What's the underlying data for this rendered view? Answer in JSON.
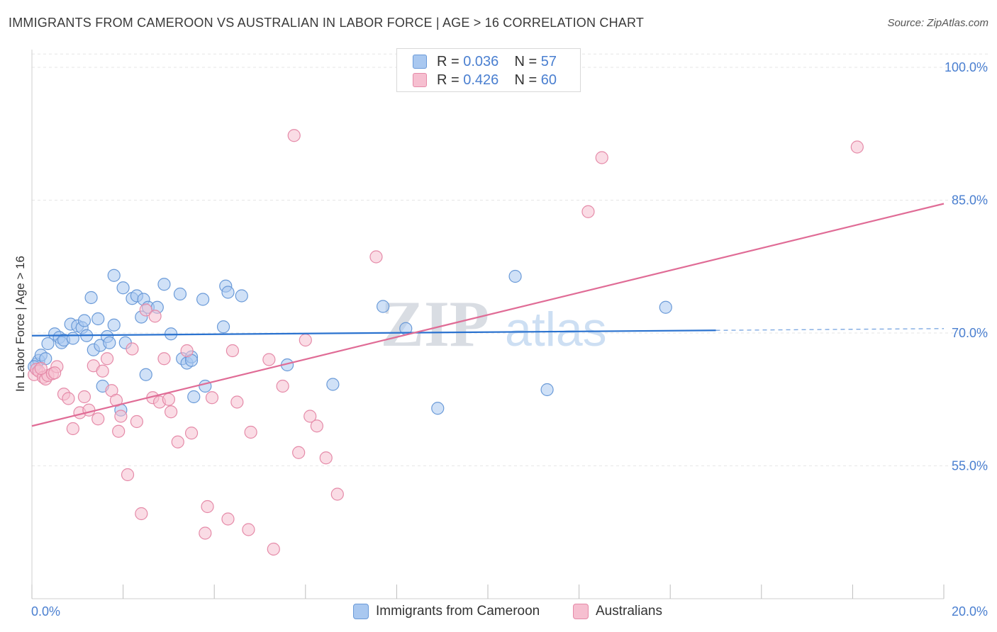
{
  "header": {
    "title": "IMMIGRANTS FROM CAMEROON VS AUSTRALIAN IN LABOR FORCE | AGE > 16 CORRELATION CHART",
    "source": "Source: ZipAtlas.com"
  },
  "legend": {
    "series1": {
      "r_label": "R =",
      "r_value": "0.036",
      "n_label": "N =",
      "n_value": "57"
    },
    "series2": {
      "r_label": "R =",
      "r_value": "0.426",
      "n_label": "N =",
      "n_value": "60"
    }
  },
  "bottom_legend": {
    "series1_label": "Immigrants from Cameroon",
    "series2_label": "Australians"
  },
  "watermark": {
    "part1": "ZIP",
    "part2": "atlas"
  },
  "colors": {
    "blue_fill": "#a9c8f0",
    "blue_stroke": "#6a9ad8",
    "blue_line": "#2a72cf",
    "pink_fill": "#f6bfd0",
    "pink_stroke": "#e58aa8",
    "pink_line": "#e06c96",
    "axis_text": "#4a7fd0",
    "grid": "#e6e6e6"
  },
  "chart_data": {
    "type": "scatter",
    "title": "IMMIGRANTS FROM CAMEROON VS AUSTRALIAN IN LABOR FORCE | AGE > 16 CORRELATION CHART",
    "xlabel": "",
    "ylabel": "In Labor Force | Age > 16",
    "xlim": [
      0,
      20
    ],
    "ylim": [
      40,
      102
    ],
    "x_tick_labels": [
      "0.0%",
      "20.0%"
    ],
    "y_ticks": [
      55,
      70,
      85,
      100
    ],
    "y_tick_labels": [
      "55.0%",
      "70.0%",
      "85.0%",
      "100.0%"
    ],
    "grid": true,
    "legend_position": "top-center",
    "series": [
      {
        "name": "Immigrants from Cameroon",
        "r": 0.036,
        "n": 57,
        "trend": {
          "x0": 0,
          "y0": 69.7,
          "x1": 15,
          "y1": 70.3,
          "dashed_to_x": 20,
          "dashed_to_y": 70.5
        },
        "points": [
          [
            0.1,
            66.5
          ],
          [
            0.15,
            66.9
          ],
          [
            0.2,
            67.5
          ],
          [
            0.3,
            67.1
          ],
          [
            0.35,
            68.8
          ],
          [
            0.5,
            69.9
          ],
          [
            0.6,
            69.5
          ],
          [
            0.65,
            68.9
          ],
          [
            0.7,
            69.2
          ],
          [
            0.9,
            69.4
          ],
          [
            0.85,
            71.0
          ],
          [
            1.0,
            70.8
          ],
          [
            1.1,
            70.6
          ],
          [
            1.15,
            71.4
          ],
          [
            1.2,
            69.7
          ],
          [
            1.3,
            74.0
          ],
          [
            1.35,
            68.1
          ],
          [
            1.45,
            71.6
          ],
          [
            1.5,
            68.6
          ],
          [
            1.55,
            64.0
          ],
          [
            1.65,
            69.6
          ],
          [
            1.7,
            68.9
          ],
          [
            1.8,
            70.9
          ],
          [
            1.8,
            76.5
          ],
          [
            1.95,
            61.3
          ],
          [
            2.0,
            75.1
          ],
          [
            2.05,
            68.9
          ],
          [
            2.2,
            73.9
          ],
          [
            2.3,
            74.2
          ],
          [
            2.4,
            71.8
          ],
          [
            2.45,
            73.8
          ],
          [
            2.5,
            65.3
          ],
          [
            2.55,
            72.9
          ],
          [
            2.75,
            72.9
          ],
          [
            2.9,
            75.5
          ],
          [
            3.05,
            69.9
          ],
          [
            3.25,
            74.4
          ],
          [
            3.3,
            67.1
          ],
          [
            3.4,
            66.6
          ],
          [
            3.5,
            67.3
          ],
          [
            3.5,
            66.9
          ],
          [
            3.55,
            62.8
          ],
          [
            3.75,
            73.8
          ],
          [
            3.8,
            64.0
          ],
          [
            4.2,
            70.7
          ],
          [
            4.25,
            75.3
          ],
          [
            4.3,
            74.6
          ],
          [
            4.6,
            74.2
          ],
          [
            5.6,
            66.4
          ],
          [
            6.6,
            64.2
          ],
          [
            7.7,
            73.0
          ],
          [
            8.2,
            70.5
          ],
          [
            8.9,
            61.5
          ],
          [
            10.6,
            76.4
          ],
          [
            11.3,
            63.6
          ],
          [
            13.9,
            72.9
          ],
          [
            0.05,
            66.2
          ]
        ]
      },
      {
        "name": "Australians",
        "r": 0.426,
        "n": 60,
        "trend": {
          "x0": 0,
          "y0": 59.5,
          "x1": 20,
          "y1": 84.6
        },
        "points": [
          [
            0.05,
            65.3
          ],
          [
            0.1,
            65.9
          ],
          [
            0.15,
            65.7
          ],
          [
            0.25,
            65.0
          ],
          [
            0.3,
            64.8
          ],
          [
            0.35,
            65.2
          ],
          [
            0.45,
            65.4
          ],
          [
            0.55,
            66.2
          ],
          [
            0.7,
            63.1
          ],
          [
            0.8,
            62.6
          ],
          [
            0.9,
            59.2
          ],
          [
            1.05,
            61.0
          ],
          [
            1.15,
            62.8
          ],
          [
            1.25,
            61.3
          ],
          [
            1.35,
            66.3
          ],
          [
            1.45,
            60.3
          ],
          [
            1.55,
            65.7
          ],
          [
            1.65,
            67.1
          ],
          [
            1.75,
            63.5
          ],
          [
            1.85,
            62.4
          ],
          [
            1.9,
            58.9
          ],
          [
            1.95,
            60.6
          ],
          [
            2.1,
            54.0
          ],
          [
            2.2,
            68.2
          ],
          [
            2.3,
            60.0
          ],
          [
            2.4,
            49.6
          ],
          [
            2.5,
            72.6
          ],
          [
            2.65,
            62.7
          ],
          [
            2.7,
            71.9
          ],
          [
            2.8,
            62.2
          ],
          [
            2.9,
            67.1
          ],
          [
            3.0,
            62.5
          ],
          [
            3.05,
            61.1
          ],
          [
            3.2,
            57.7
          ],
          [
            3.4,
            68.0
          ],
          [
            3.5,
            58.7
          ],
          [
            3.8,
            47.4
          ],
          [
            3.85,
            50.4
          ],
          [
            3.95,
            62.7
          ],
          [
            4.3,
            49.0
          ],
          [
            4.4,
            68.0
          ],
          [
            4.5,
            62.2
          ],
          [
            4.75,
            47.8
          ],
          [
            4.8,
            58.8
          ],
          [
            5.2,
            67.0
          ],
          [
            5.3,
            45.6
          ],
          [
            5.5,
            64.0
          ],
          [
            5.75,
            92.3
          ],
          [
            5.85,
            56.5
          ],
          [
            6.0,
            69.2
          ],
          [
            6.1,
            60.6
          ],
          [
            6.25,
            59.5
          ],
          [
            6.45,
            55.9
          ],
          [
            6.7,
            51.8
          ],
          [
            7.55,
            78.6
          ],
          [
            12.2,
            83.7
          ],
          [
            12.5,
            89.8
          ],
          [
            18.1,
            91.0
          ],
          [
            0.5,
            65.5
          ],
          [
            0.2,
            66.0
          ]
        ]
      }
    ]
  }
}
